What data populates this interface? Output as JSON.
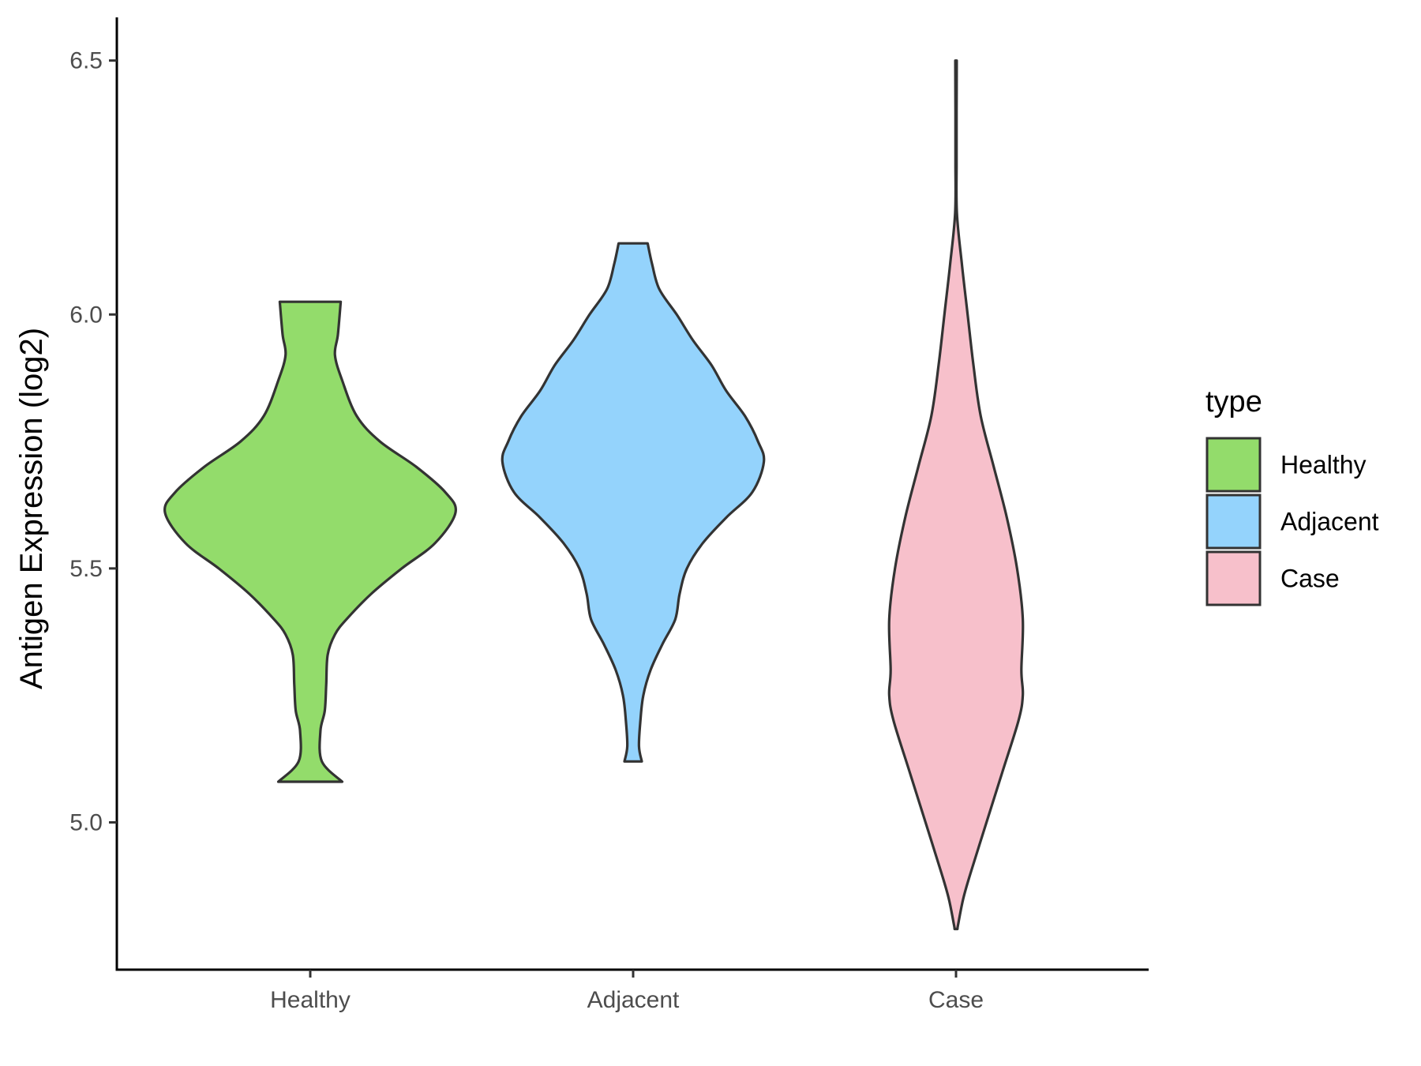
{
  "chart_data": {
    "type": "violin",
    "ylabel": "Antigen Expression (log2)",
    "xlabel": "",
    "ylim": [
      4.71,
      6.585
    ],
    "yticks": [
      "5.0",
      "5.5",
      "6.0",
      "6.5"
    ],
    "ytick_values": [
      5.0,
      5.5,
      6.0,
      6.5
    ],
    "categories": [
      "Healthy",
      "Adjacent",
      "Case"
    ],
    "grid": false,
    "legend": {
      "title": "type",
      "placement": "right",
      "entries": [
        "Healthy",
        "Adjacent",
        "Case"
      ]
    },
    "series": [
      {
        "name": "Healthy",
        "color": "#93dc6b",
        "min": 5.08,
        "max": 6.025,
        "density": [
          [
            6.025,
            0.21
          ],
          [
            5.96,
            0.19
          ],
          [
            5.92,
            0.17
          ],
          [
            5.87,
            0.22
          ],
          [
            5.8,
            0.32
          ],
          [
            5.75,
            0.48
          ],
          [
            5.7,
            0.73
          ],
          [
            5.65,
            0.93
          ],
          [
            5.61,
            1.0
          ],
          [
            5.55,
            0.86
          ],
          [
            5.5,
            0.63
          ],
          [
            5.45,
            0.42
          ],
          [
            5.4,
            0.25
          ],
          [
            5.37,
            0.17
          ],
          [
            5.33,
            0.12
          ],
          [
            5.27,
            0.11
          ],
          [
            5.22,
            0.1
          ],
          [
            5.18,
            0.07
          ],
          [
            5.12,
            0.08
          ],
          [
            5.08,
            0.22
          ]
        ]
      },
      {
        "name": "Adjacent",
        "color": "#94d3fc",
        "min": 5.12,
        "max": 6.14,
        "density": [
          [
            6.14,
            0.1
          ],
          [
            6.1,
            0.13
          ],
          [
            6.05,
            0.18
          ],
          [
            6.0,
            0.3
          ],
          [
            5.95,
            0.41
          ],
          [
            5.9,
            0.54
          ],
          [
            5.85,
            0.64
          ],
          [
            5.8,
            0.77
          ],
          [
            5.75,
            0.86
          ],
          [
            5.71,
            0.9
          ],
          [
            5.65,
            0.82
          ],
          [
            5.6,
            0.64
          ],
          [
            5.55,
            0.48
          ],
          [
            5.5,
            0.37
          ],
          [
            5.45,
            0.32
          ],
          [
            5.4,
            0.29
          ],
          [
            5.35,
            0.2
          ],
          [
            5.3,
            0.12
          ],
          [
            5.25,
            0.07
          ],
          [
            5.2,
            0.05
          ],
          [
            5.15,
            0.04
          ],
          [
            5.12,
            0.06
          ]
        ]
      },
      {
        "name": "Case",
        "color": "#f7c0cb",
        "min": 4.79,
        "max": 6.5,
        "density": [
          [
            6.5,
            0.005
          ],
          [
            6.4,
            0.004
          ],
          [
            6.3,
            0.004
          ],
          [
            6.2,
            0.006
          ],
          [
            6.1,
            0.04
          ],
          [
            6.0,
            0.08
          ],
          [
            5.9,
            0.12
          ],
          [
            5.8,
            0.17
          ],
          [
            5.7,
            0.26
          ],
          [
            5.6,
            0.35
          ],
          [
            5.5,
            0.42
          ],
          [
            5.4,
            0.46
          ],
          [
            5.3,
            0.45
          ],
          [
            5.25,
            0.46
          ],
          [
            5.2,
            0.43
          ],
          [
            5.1,
            0.32
          ],
          [
            5.0,
            0.21
          ],
          [
            4.9,
            0.1
          ],
          [
            4.85,
            0.05
          ],
          [
            4.8,
            0.015
          ],
          [
            4.79,
            0.01
          ]
        ]
      }
    ]
  }
}
